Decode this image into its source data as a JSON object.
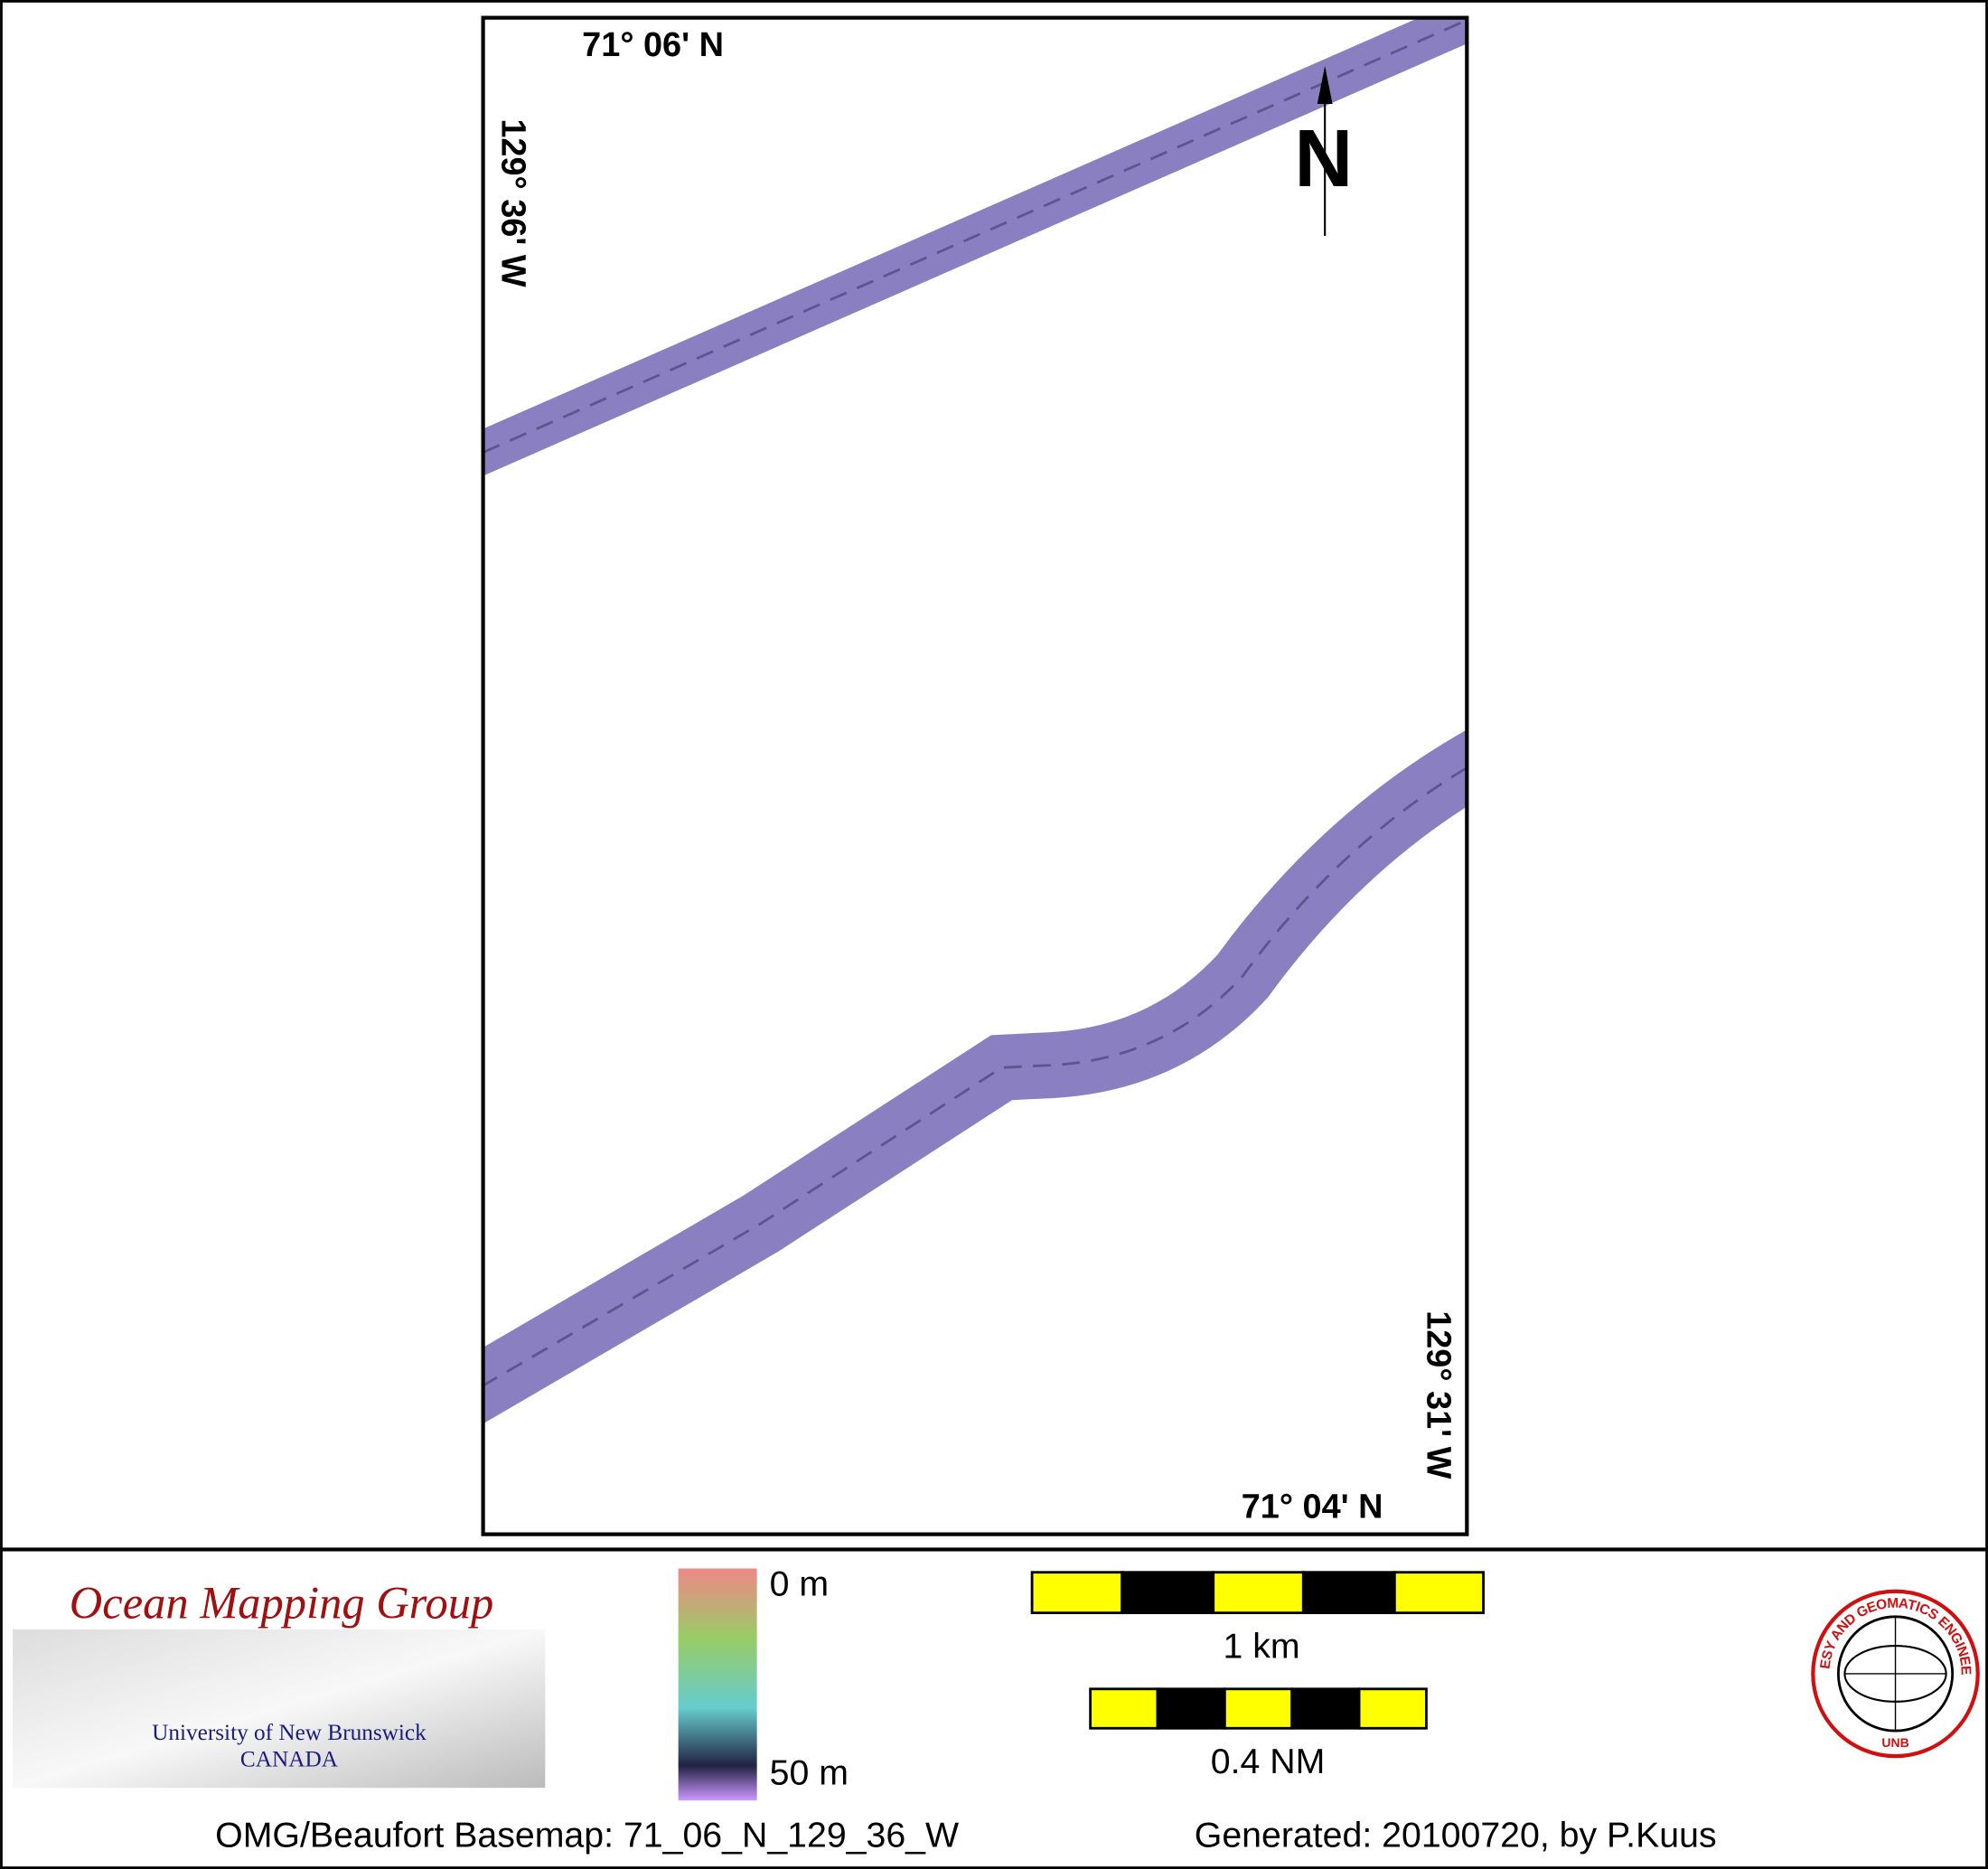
{
  "map": {
    "lat_top": "71° 06' N",
    "lon_left": "129° 36' W",
    "north": "N",
    "lon_right": "129° 31' W",
    "lat_bottom": "71° 04' N"
  },
  "legend": {
    "logo_title": "Ocean Mapping Group",
    "logo_university": "University of New Brunswick",
    "logo_country": "CANADA",
    "depth_top": "0 m",
    "depth_bottom": "50 m",
    "scale_km": "1 km",
    "scale_nm": "0.4 NM",
    "badge_ring": "GEODESY AND GEOMATICS ENGINEERING",
    "badge_bottom": "UNB"
  },
  "footer": {
    "basemap": "OMG/Beaufort Basemap: 71_06_N_129_36_W",
    "generated": "Generated: 20100720, by P.Kuus"
  }
}
